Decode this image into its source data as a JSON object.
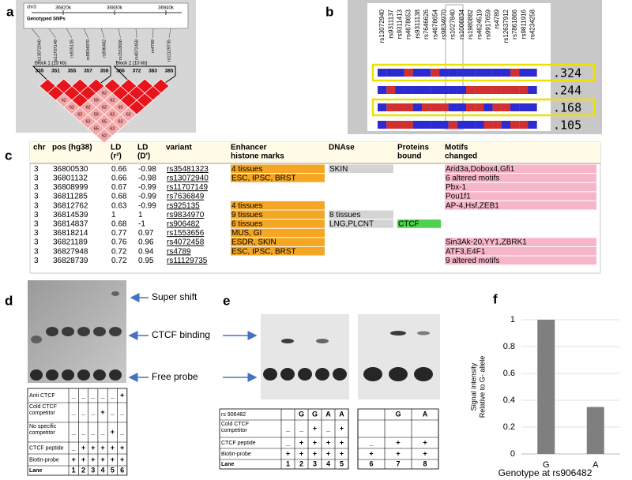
{
  "panel_labels": [
    "a",
    "b",
    "c",
    "d",
    "e",
    "f"
  ],
  "panel_a": {
    "chromosome": "chr3",
    "positions": [
      "36820k",
      "36830k",
      "36840k"
    ],
    "track_label": "Genotyped SNPs",
    "snps": [
      "rs13072940",
      "rs11707149",
      "rs925135",
      "rs9834970",
      "rs906482",
      "rs1553656",
      "rs4072458",
      "rs4789",
      "rs11129735"
    ],
    "blocks": [
      "Block 1 (13 kb)",
      "Block 2 (10 kb)"
    ],
    "block_markers": [
      "335",
      "351",
      "355",
      "357",
      "358",
      "366",
      "372",
      "383",
      "385"
    ],
    "ld_cells": [
      [
        null,
        null,
        null,
        null,
        null,
        null,
        null,
        null
      ],
      [
        null,
        null,
        null,
        "62",
        null,
        null,
        null
      ],
      [
        "62",
        null,
        "59",
        "62",
        null,
        null
      ],
      [
        "62",
        "62",
        "62",
        "65",
        null
      ],
      [
        "62",
        "59",
        "62",
        "62"
      ],
      [
        "62",
        "65",
        "62"
      ],
      [
        "65",
        "62"
      ],
      [
        "62"
      ]
    ]
  },
  "panel_b": {
    "snps": [
      "rs13072940",
      "rs9311137",
      "rs9311413",
      "rs4678653",
      "rs9311138",
      "rs7646626",
      "rs4678654",
      "rs9834970",
      "rs1027840",
      "rs1006834",
      "rs1980882",
      "rs4624519",
      "rs9917659",
      "rs4789",
      "rs12637912",
      "rs7861866",
      "rs9811916",
      "rs4234258"
    ],
    "frequencies": [
      ".324",
      ".244",
      ".168",
      ".105"
    ]
  },
  "table": {
    "headers": [
      [
        "chr"
      ],
      [
        "pos (hg38)"
      ],
      [
        "LD",
        "(r²)"
      ],
      [
        "LD",
        "(D')"
      ],
      [
        "variant"
      ],
      [
        "Enhancer",
        "histone marks"
      ],
      [
        "DNAse"
      ],
      [
        "Proteins",
        "bound"
      ],
      [
        "Motifs",
        "changed"
      ]
    ],
    "rows": [
      [
        "3",
        "36800530",
        "0.66",
        "-0.98",
        "rs35481323",
        "4 tissues",
        "SKIN",
        null,
        "Arid3a,Dobox4,Gfi1"
      ],
      [
        "3",
        "36801132",
        "0.66",
        "-0.98",
        "rs13072940",
        "ESC, IPSC, BRST",
        null,
        null,
        "6 altered motifs"
      ],
      [
        "3",
        "36808999",
        "0.67",
        "-0.99",
        "rs11707149",
        null,
        null,
        null,
        "Pbx-1"
      ],
      [
        "3",
        "36811285",
        "0.68",
        "-0.99",
        "rs7636849",
        null,
        null,
        null,
        "Pou1f1"
      ],
      [
        "3",
        "36812762",
        "0.63",
        "-0.99",
        "rs925135",
        "4 tissues",
        null,
        null,
        "AP-4,Hsf,ZEB1"
      ],
      [
        "3",
        "36814539",
        "1",
        "1",
        "rs9834970",
        "9 tissues",
        "8 tissues",
        null,
        null
      ],
      [
        "3",
        "36814837",
        "0.68",
        "-1",
        "rs906482",
        "6 tissues",
        "LNG,PLCNT",
        "CTCF",
        null
      ],
      [
        "3",
        "36818214",
        "0.77",
        "0.97",
        "rs1553656",
        "MUS, GI",
        null,
        null,
        null
      ],
      [
        "3",
        "36821189",
        "0.76",
        "0.96",
        "rs4072458",
        "ESDR, SKIN",
        null,
        null,
        "Sin3Ak-20,YY1,ZBRK1"
      ],
      [
        "3",
        "36827948",
        "0.72",
        "0.94",
        "rs4789",
        "ESC, IPSC, BRST",
        null,
        null,
        "ATF3,E4F1"
      ],
      [
        "3",
        "36828739",
        "0.72",
        "0.95",
        "rs11129735",
        null,
        null,
        null,
        "9 altered motifs"
      ]
    ]
  },
  "gel_labels": {
    "super_shift": "Super shift",
    "ctcf_binding": "CTCF binding",
    "free_probe": "Free probe"
  },
  "panel_d": {
    "rows": [
      {
        "label": [
          "Anti CTCF"
        ],
        "cells": [
          "_",
          "_",
          "_",
          "_",
          "_",
          "+"
        ]
      },
      {
        "label": [
          "Cold CTCF",
          "competitor"
        ],
        "cells": [
          "_",
          "_",
          "_",
          "+",
          "_",
          "_"
        ]
      },
      {
        "label": [
          "No specific",
          "competitor"
        ],
        "cells": [
          "_",
          "_",
          "_",
          "_",
          "+",
          "_"
        ]
      },
      {
        "label": [
          "CTCF peptide"
        ],
        "cells": [
          "_",
          "+",
          "+",
          "+",
          "+",
          "+"
        ]
      },
      {
        "label": [
          "Biotin-probe"
        ],
        "cells": [
          "+",
          "+",
          "+",
          "+",
          "+",
          "+"
        ]
      },
      {
        "label": [
          "Lane"
        ],
        "cells": [
          "1",
          "2",
          "3",
          "4",
          "5",
          "6"
        ]
      }
    ]
  },
  "panel_e": {
    "rows": [
      {
        "label": [
          "rs 906482"
        ],
        "cells": [
          null,
          "G",
          "G",
          "A",
          "A"
        ],
        "cells2": [
          null,
          "G",
          "A"
        ]
      },
      {
        "label": [
          "Cold CTCF",
          "competitor"
        ],
        "cells": [
          "_",
          "_",
          "+",
          "_",
          "+"
        ],
        "cells2": [
          null,
          null,
          null
        ]
      },
      {
        "label": [
          "CTCF peptide"
        ],
        "cells": [
          "_",
          "+",
          "+",
          "+",
          "+"
        ],
        "cells2": [
          "_",
          "+",
          "+"
        ]
      },
      {
        "label": [
          "Biotin-probe"
        ],
        "cells": [
          "+",
          "+",
          "+",
          "+",
          "+"
        ],
        "cells2": [
          "+",
          "+",
          "+"
        ]
      },
      {
        "label": [
          "Lane"
        ],
        "cells": [
          "1",
          "2",
          "3",
          "4",
          "5"
        ],
        "cells2": [
          "6",
          "7",
          "8"
        ]
      }
    ]
  },
  "chart_data": {
    "type": "bar",
    "categories": [
      "G",
      "A"
    ],
    "values": [
      1,
      0.35
    ],
    "color": "#7f7f7f",
    "ylim": [
      0,
      1
    ],
    "yticks": [
      0,
      0.2,
      0.4,
      0.6,
      0.8,
      1
    ],
    "grid": true,
    "y_label": [
      "Signal intensity",
      "Relative to G- allele"
    ],
    "x_label": "Genotype at rs906482"
  }
}
